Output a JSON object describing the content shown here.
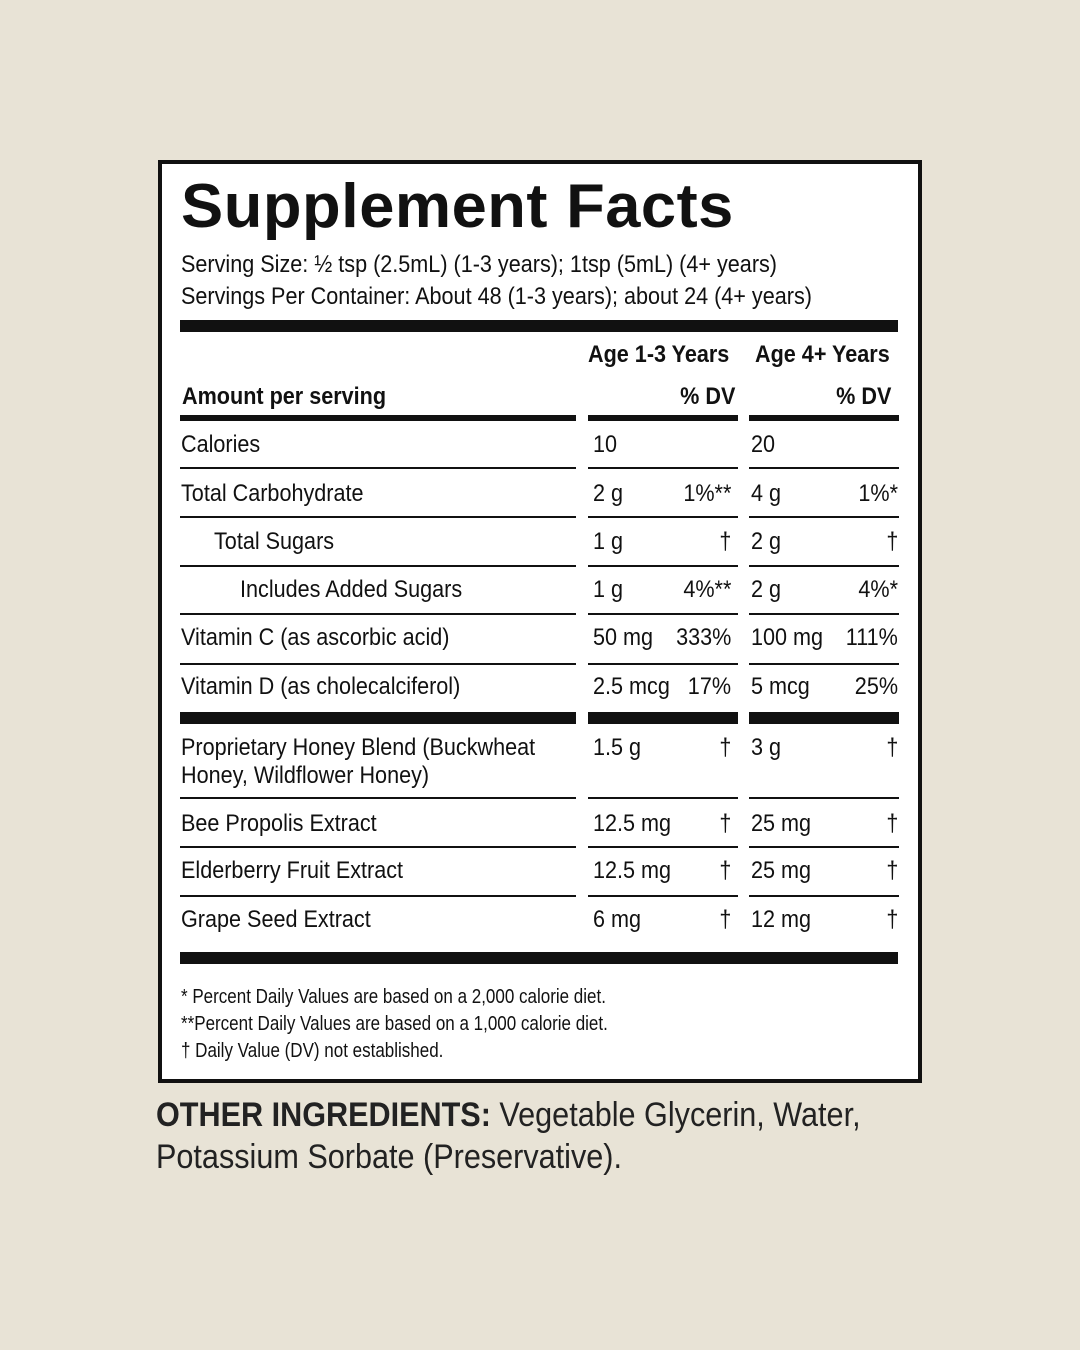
{
  "header": {
    "title": "Supplement Facts",
    "serving_size": "Serving Size: ½ tsp (2.5mL) (1-3 years); 1tsp (5mL) (4+ years)",
    "servings_per_container": "Servings Per Container: About 48 (1-3 years); about 24 (4+ years)"
  },
  "table": {
    "columns": [
      "Age 1-3 Years",
      "Age 4+ Years"
    ],
    "amount_label": "Amount per serving",
    "dv_labels": [
      "% DV",
      "% DV"
    ],
    "rows": [
      [
        "Calories",
        "10",
        null,
        "20",
        null
      ],
      [
        "Total Carbohydrate",
        "2 g",
        "1%**",
        "4 g",
        "1%*"
      ],
      [
        "Total Sugars",
        "1 g",
        "†",
        "2 g",
        "†"
      ],
      [
        "Includes Added Sugars",
        "1 g",
        "4%**",
        "2 g",
        "4%*"
      ],
      [
        "Vitamin C (as ascorbic acid)",
        "50 mg",
        "333%",
        "100 mg",
        "111%"
      ],
      [
        "Vitamin D (as cholecalciferol)",
        "2.5 mcg",
        "17%",
        "5 mcg",
        "25%"
      ],
      [
        "Proprietary Honey Blend (Buckwheat Honey, Wildflower Honey)",
        "1.5 g",
        "†",
        "3 g",
        "†"
      ],
      [
        "Bee Propolis Extract",
        "12.5 mg",
        "†",
        "25 mg",
        "†"
      ],
      [
        "Elderberry Fruit Extract",
        "12.5 mg",
        "†",
        "25 mg",
        "†"
      ],
      [
        "Grape Seed Extract",
        "6 mg",
        "†",
        "12 mg",
        "†"
      ]
    ]
  },
  "footnotes": [
    "* Percent Daily Values are based on a 2,000 calorie diet.",
    "**Percent Daily Values are based on a 1,000 calorie diet.",
    "† Daily Value (DV) not established."
  ],
  "other_ingredients": {
    "label": "OTHER INGREDIENTS:",
    "text": "Vegetable Glycerin, Water, Potassium Sorbate (Preservative)."
  }
}
